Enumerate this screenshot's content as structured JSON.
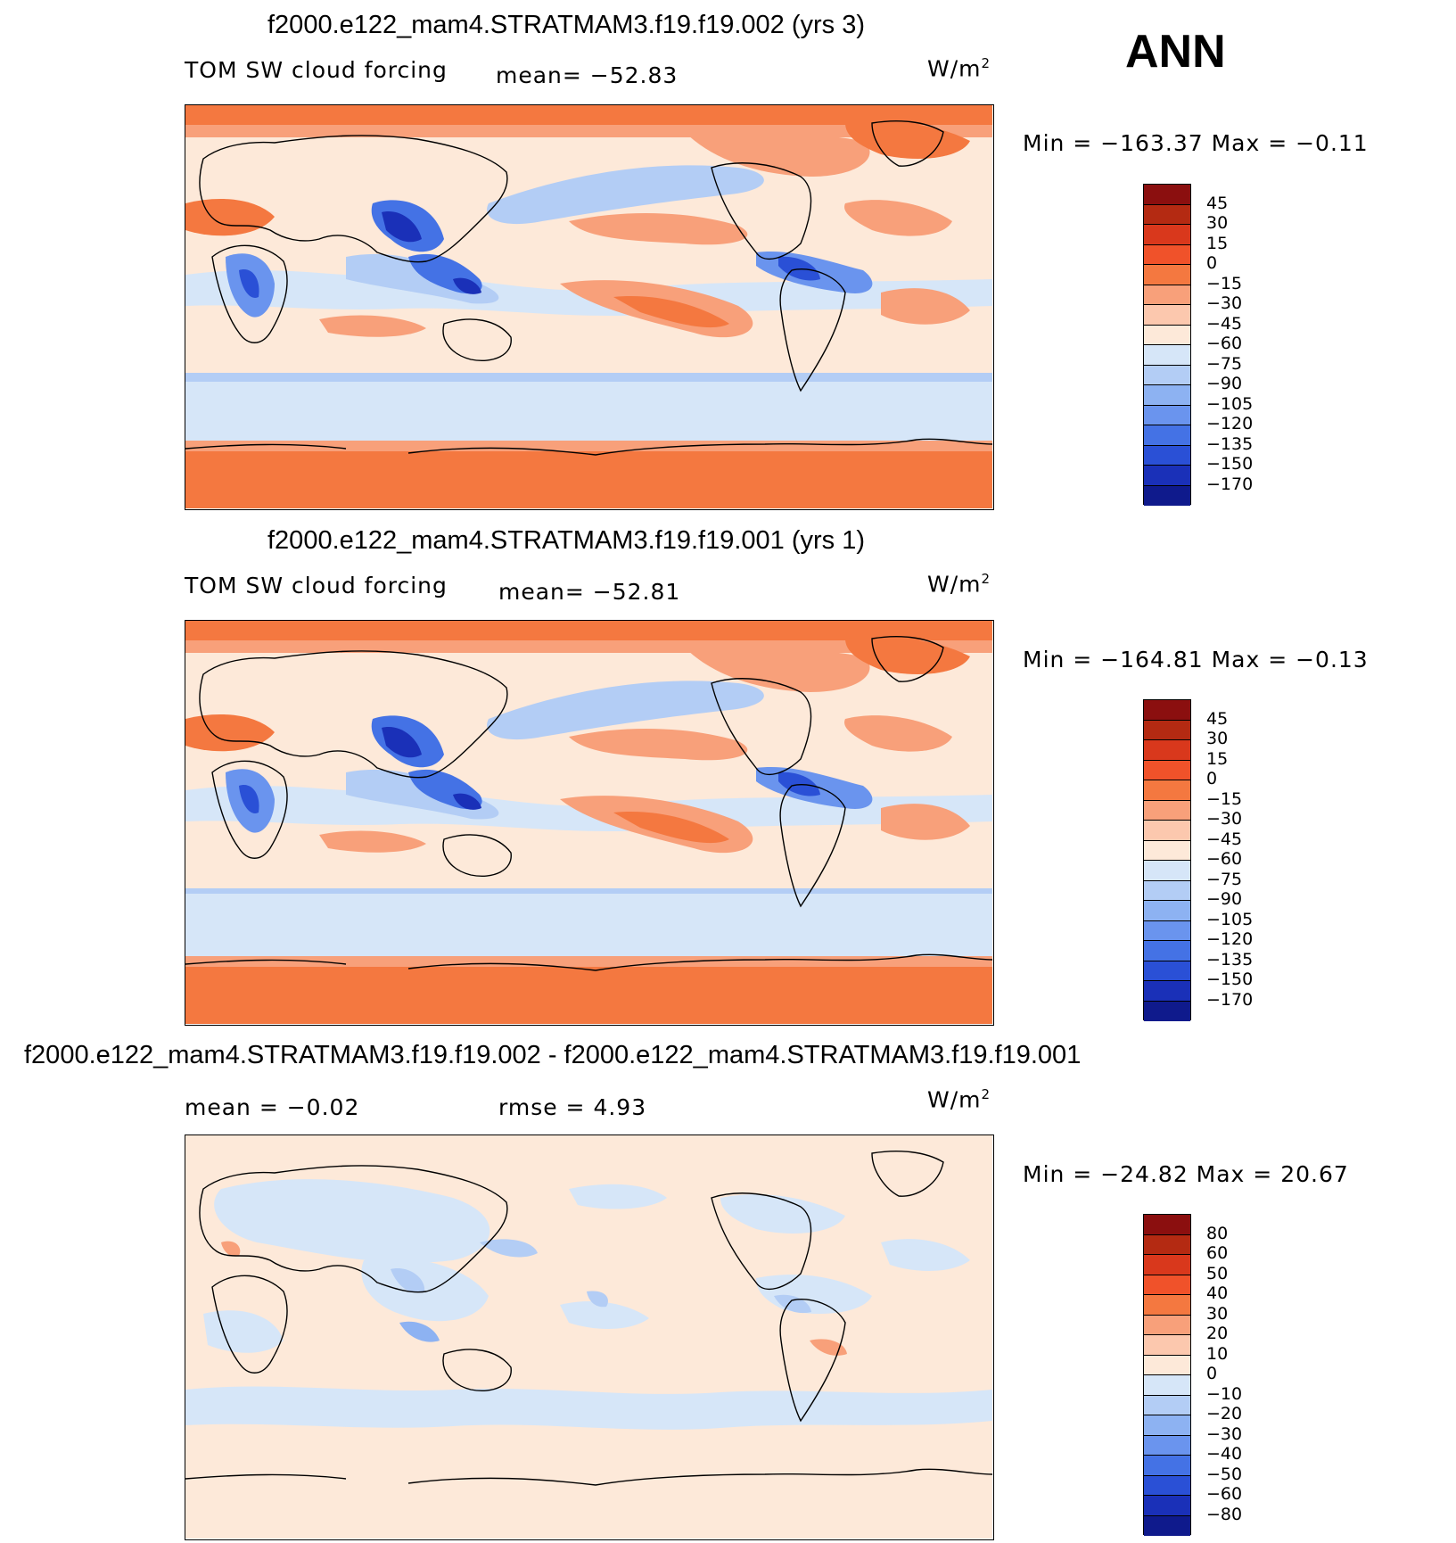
{
  "season": "ANN",
  "panels": [
    {
      "title": "f2000.e122_mam4.STRATMAM3.f19.f19.002 (yrs 3)",
      "left_label": "TOM SW cloud forcing",
      "stat1": "mean= −52.83",
      "stat2": "",
      "units": "W/m",
      "units_sup": "2",
      "minmax": "Min = −163.37 Max =  −0.11"
    },
    {
      "title": "f2000.e122_mam4.STRATMAM3.f19.f19.001 (yrs 1)",
      "left_label": "TOM SW cloud forcing",
      "stat1": "mean= −52.81",
      "stat2": "",
      "units": "W/m",
      "units_sup": "2",
      "minmax": "Min = −164.81 Max =  −0.13"
    },
    {
      "title": "f2000.e122_mam4.STRATMAM3.f19.f19.002 - f2000.e122_mam4.STRATMAM3.f19.f19.001",
      "left_label": "mean =  −0.02",
      "stat1": "rmse =   4.93",
      "stat2": "",
      "units": "W/m",
      "units_sup": "2",
      "minmax": "Min = −24.82 Max =  20.67"
    }
  ],
  "colorbars": [
    {
      "labels": [
        "45",
        "30",
        "15",
        "0",
        "−15",
        "−30",
        "−45",
        "−60",
        "−75",
        "−90",
        "−105",
        "−120",
        "−135",
        "−150",
        "−170"
      ],
      "colors": [
        "#8b0f0f",
        "#b42a12",
        "#d9381c",
        "#f0522a",
        "#f47840",
        "#f8a07a",
        "#fcc8ae",
        "#fde9d9",
        "#d6e6f8",
        "#b3cdf5",
        "#8db2f2",
        "#6a94ee",
        "#4472e5",
        "#2a50d6",
        "#1a30b8",
        "#0f1a8c"
      ]
    },
    {
      "labels": [
        "45",
        "30",
        "15",
        "0",
        "−15",
        "−30",
        "−45",
        "−60",
        "−75",
        "−90",
        "−105",
        "−120",
        "−135",
        "−150",
        "−170"
      ],
      "colors": [
        "#8b0f0f",
        "#b42a12",
        "#d9381c",
        "#f0522a",
        "#f47840",
        "#f8a07a",
        "#fcc8ae",
        "#fde9d9",
        "#d6e6f8",
        "#b3cdf5",
        "#8db2f2",
        "#6a94ee",
        "#4472e5",
        "#2a50d6",
        "#1a30b8",
        "#0f1a8c"
      ]
    },
    {
      "labels": [
        "80",
        "60",
        "50",
        "40",
        "30",
        "20",
        "10",
        "0",
        "−10",
        "−20",
        "−30",
        "−40",
        "−50",
        "−60",
        "−80"
      ],
      "colors": [
        "#8b0f0f",
        "#b42a12",
        "#d9381c",
        "#f0522a",
        "#f47840",
        "#f8a07a",
        "#fcc8ae",
        "#fde9d9",
        "#d6e6f8",
        "#b3cdf5",
        "#8db2f2",
        "#6a94ee",
        "#4472e5",
        "#2a50d6",
        "#1a30b8",
        "#0f1a8c"
      ]
    }
  ]
}
